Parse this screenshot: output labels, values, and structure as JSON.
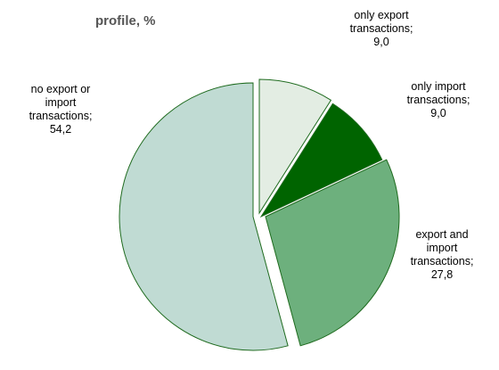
{
  "chart_data": {
    "type": "pie",
    "title": "profile, %",
    "slices": [
      {
        "label": [
          "only export",
          "transactions;",
          "9,0"
        ],
        "value": 9.0,
        "color": "#e3ede3"
      },
      {
        "label": [
          "only import",
          "transactions;",
          "9,0"
        ],
        "value": 9.0,
        "color": "#006400"
      },
      {
        "label": [
          "export and",
          "import",
          "transactions;",
          "27,8"
        ],
        "value": 27.8,
        "color": "#6db07d"
      },
      {
        "label": [
          "no export or",
          "import",
          "transactions;",
          "54,2"
        ],
        "value": 54.2,
        "color": "#c0dbd3"
      }
    ],
    "stroke_color": "#1f6b1f",
    "legend": "none",
    "start": "top",
    "direction": "clockwise",
    "exploded": true
  }
}
